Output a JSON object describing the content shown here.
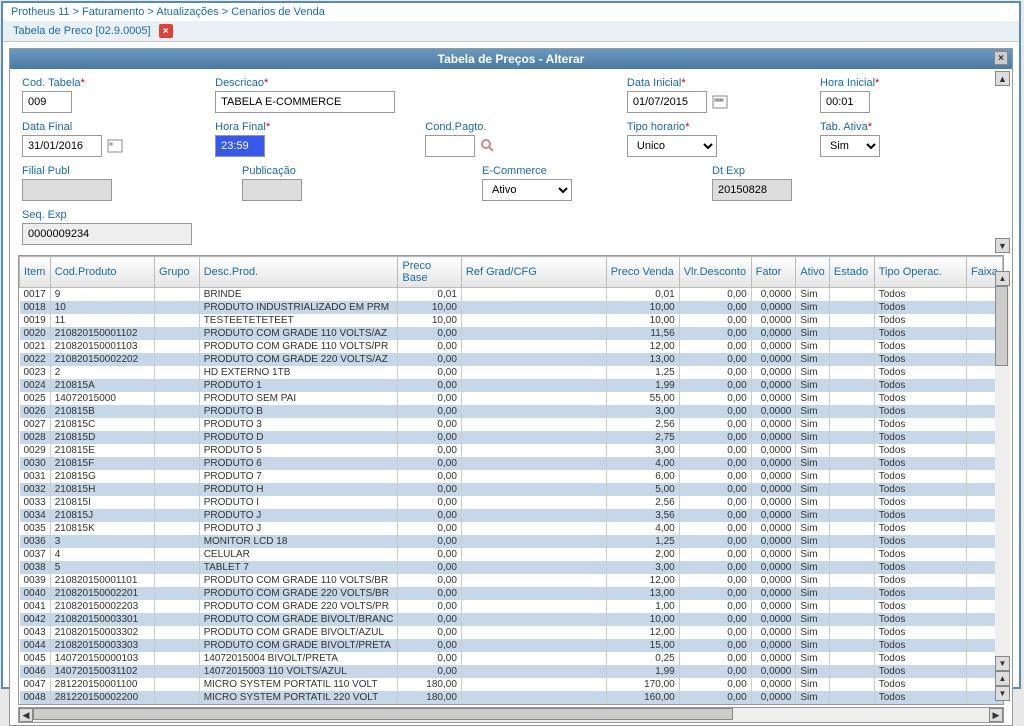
{
  "breadcrumb": [
    "Protheus 11",
    "Faturamento",
    "Atualizações",
    "Cenarios de Venda"
  ],
  "tab_label": "Tabela de Preco [02.9.0005]",
  "dialog_title": "Tabela de Preços - Alterar",
  "form": {
    "cod_tabela": {
      "label": "Cod. Tabela",
      "value": "009",
      "required": true
    },
    "descricao": {
      "label": "Descricao",
      "value": "TABELA E-COMMERCE",
      "required": true
    },
    "data_inicial": {
      "label": "Data Inicial",
      "value": "01/07/2015",
      "required": true
    },
    "hora_inicial": {
      "label": "Hora Inicial",
      "value": "00:01",
      "required": true
    },
    "data_final": {
      "label": "Data Final",
      "value": "31/01/2016"
    },
    "hora_final": {
      "label": "Hora Final",
      "value": "23:59",
      "required": true
    },
    "cond_pagto": {
      "label": "Cond.Pagto.",
      "value": ""
    },
    "tipo_horario": {
      "label": "Tipo horario",
      "value": "Unico",
      "required": true
    },
    "tab_ativa": {
      "label": "Tab. Ativa",
      "value": "Sim",
      "required": true
    },
    "filial_publ": {
      "label": "Filial Publ",
      "value": ""
    },
    "publicacao": {
      "label": "Publicação",
      "value": ""
    },
    "ecommerce": {
      "label": "E-Commerce",
      "value": "Ativo"
    },
    "dt_exp": {
      "label": "Dt Exp",
      "value": "20150828"
    },
    "seq_exp": {
      "label": "Seq. Exp",
      "value": "0000009234"
    }
  },
  "grid": {
    "headers": [
      "Item",
      "Cod.Produto",
      "Grupo",
      "Desc.Prod.",
      "Preco Base",
      "Ref Grad/CFG",
      "Preco Venda",
      "Vlr.Desconto",
      "Fator",
      "Ativo",
      "Estado",
      "Tipo Operac.",
      "Faixa"
    ],
    "col_classes": [
      "col-item",
      "col-cod",
      "col-grupo",
      "col-desc",
      "col-preco",
      "col-ref",
      "col-venda",
      "col-vlrd",
      "col-fator",
      "col-ativo",
      "col-estado",
      "col-operac",
      "col-faixa"
    ],
    "rows": [
      [
        "0017",
        "9",
        "",
        "BRINDE",
        "0,01",
        "",
        "0,01",
        "0,00",
        "0,0000",
        "Sim",
        "",
        "Todos",
        ""
      ],
      [
        "0018",
        "10",
        "",
        "PRODUTO INDUSTRIALIZADO EM PRM",
        "10,00",
        "",
        "10,00",
        "0,00",
        "0,0000",
        "Sim",
        "",
        "Todos",
        ""
      ],
      [
        "0019",
        "11",
        "",
        "TESTEETETETEET",
        "10,00",
        "",
        "10,00",
        "0,00",
        "0,0000",
        "Sim",
        "",
        "Todos",
        ""
      ],
      [
        "0020",
        "210820150001102",
        "",
        "PRODUTO COM GRADE 110 VOLTS/AZ",
        "0,00",
        "",
        "11,56",
        "0,00",
        "0,0000",
        "Sim",
        "",
        "Todos",
        ""
      ],
      [
        "0021",
        "210820150001103",
        "",
        "PRODUTO COM GRADE 110 VOLTS/PR",
        "0,00",
        "",
        "12,00",
        "0,00",
        "0,0000",
        "Sim",
        "",
        "Todos",
        ""
      ],
      [
        "0022",
        "210820150002202",
        "",
        "PRODUTO COM GRADE 220 VOLTS/AZ",
        "0,00",
        "",
        "13,00",
        "0,00",
        "0,0000",
        "Sim",
        "",
        "Todos",
        ""
      ],
      [
        "0023",
        "2",
        "",
        "HD EXTERNO 1TB",
        "0,00",
        "",
        "1,25",
        "0,00",
        "0,0000",
        "Sim",
        "",
        "Todos",
        ""
      ],
      [
        "0024",
        "210815A",
        "",
        "PRODUTO 1",
        "0,00",
        "",
        "1,99",
        "0,00",
        "0,0000",
        "Sim",
        "",
        "Todos",
        ""
      ],
      [
        "0025",
        "14072015000",
        "",
        "PRODUTO SEM PAI",
        "0,00",
        "",
        "55,00",
        "0,00",
        "0,0000",
        "Sim",
        "",
        "Todos",
        ""
      ],
      [
        "0026",
        "210815B",
        "",
        "PRODUTO B",
        "0,00",
        "",
        "3,00",
        "0,00",
        "0,0000",
        "Sim",
        "",
        "Todos",
        ""
      ],
      [
        "0027",
        "210815C",
        "",
        "PRODUTO 3",
        "0,00",
        "",
        "2,56",
        "0,00",
        "0,0000",
        "Sim",
        "",
        "Todos",
        ""
      ],
      [
        "0028",
        "210815D",
        "",
        "PRODUTO D",
        "0,00",
        "",
        "2,75",
        "0,00",
        "0,0000",
        "Sim",
        "",
        "Todos",
        ""
      ],
      [
        "0029",
        "210815E",
        "",
        "PRODUTO 5",
        "0,00",
        "",
        "3,00",
        "0,00",
        "0,0000",
        "Sim",
        "",
        "Todos",
        ""
      ],
      [
        "0030",
        "210815F",
        "",
        "PRODUTO 6",
        "0,00",
        "",
        "4,00",
        "0,00",
        "0,0000",
        "Sim",
        "",
        "Todos",
        ""
      ],
      [
        "0031",
        "210815G",
        "",
        "PRODUTO  7",
        "0,00",
        "",
        "6,00",
        "0,00",
        "0,0000",
        "Sim",
        "",
        "Todos",
        ""
      ],
      [
        "0032",
        "210815H",
        "",
        "PRODUTO H",
        "0,00",
        "",
        "5,00",
        "0,00",
        "0,0000",
        "Sim",
        "",
        "Todos",
        ""
      ],
      [
        "0033",
        "210815I",
        "",
        "PRODUTO I",
        "0,00",
        "",
        "2,56",
        "0,00",
        "0,0000",
        "Sim",
        "",
        "Todos",
        ""
      ],
      [
        "0034",
        "210815J",
        "",
        "PRODUTO J",
        "0,00",
        "",
        "3,56",
        "0,00",
        "0,0000",
        "Sim",
        "",
        "Todos",
        ""
      ],
      [
        "0035",
        "210815K",
        "",
        "PRODUTO J",
        "0,00",
        "",
        "4,00",
        "0,00",
        "0,0000",
        "Sim",
        "",
        "Todos",
        ""
      ],
      [
        "0036",
        "3",
        "",
        "MONITOR LCD 18",
        "0,00",
        "",
        "1,25",
        "0,00",
        "0,0000",
        "Sim",
        "",
        "Todos",
        ""
      ],
      [
        "0037",
        "4",
        "",
        "CELULAR",
        "0,00",
        "",
        "2,00",
        "0,00",
        "0,0000",
        "Sim",
        "",
        "Todos",
        ""
      ],
      [
        "0038",
        "5",
        "",
        "TABLET 7",
        "0,00",
        "",
        "3,00",
        "0,00",
        "0,0000",
        "Sim",
        "",
        "Todos",
        ""
      ],
      [
        "0039",
        "210820150001101",
        "",
        "PRODUTO COM GRADE 110 VOLTS/BR",
        "0,00",
        "",
        "12,00",
        "0,00",
        "0,0000",
        "Sim",
        "",
        "Todos",
        ""
      ],
      [
        "0040",
        "210820150002201",
        "",
        "PRODUTO COM GRADE 220 VOLTS/BR",
        "0,00",
        "",
        "13,00",
        "0,00",
        "0,0000",
        "Sim",
        "",
        "Todos",
        ""
      ],
      [
        "0041",
        "210820150002203",
        "",
        "PRODUTO COM GRADE 220 VOLTS/PR",
        "0,00",
        "",
        "1,00",
        "0,00",
        "0,0000",
        "Sim",
        "",
        "Todos",
        ""
      ],
      [
        "0042",
        "210820150003301",
        "",
        "PRODUTO COM GRADE BIVOLT/BRANC",
        "0,00",
        "",
        "10,00",
        "0,00",
        "0,0000",
        "Sim",
        "",
        "Todos",
        ""
      ],
      [
        "0043",
        "210820150003302",
        "",
        "PRODUTO COM GRADE BIVOLT/AZUL",
        "0,00",
        "",
        "12,00",
        "0,00",
        "0,0000",
        "Sim",
        "",
        "Todos",
        ""
      ],
      [
        "0044",
        "210820150003303",
        "",
        "PRODUTO COM GRADE BIVOLT/PRETA",
        "0,00",
        "",
        "15,00",
        "0,00",
        "0,0000",
        "Sim",
        "",
        "Todos",
        ""
      ],
      [
        "0045",
        "140720150000103",
        "",
        "14072015004 BIVOLT/PRETA",
        "0,00",
        "",
        "0,25",
        "0,00",
        "0,0000",
        "Sim",
        "",
        "Todos",
        ""
      ],
      [
        "0046",
        "140720150031102",
        "",
        "14072015003 110 VOLTS/AZUL",
        "0,00",
        "",
        "1,99",
        "0,00",
        "0,0000",
        "Sim",
        "",
        "Todos",
        ""
      ],
      [
        "0047",
        "281220150001100",
        "",
        "MICRO SYSTEM PORTATIL 110 VOLT",
        "180,00",
        "",
        "170,00",
        "0,00",
        "0,0000",
        "Sim",
        "",
        "Todos",
        ""
      ],
      [
        "0048",
        "281220150002200",
        "",
        "MICRO SYSTEM PORTATIL 220 VOLT",
        "180,00",
        "",
        "160,00",
        "0,00",
        "0,0000",
        "Sim",
        "",
        "Todos",
        ""
      ]
    ],
    "numeric_cols": [
      4,
      6,
      7,
      8
    ]
  }
}
